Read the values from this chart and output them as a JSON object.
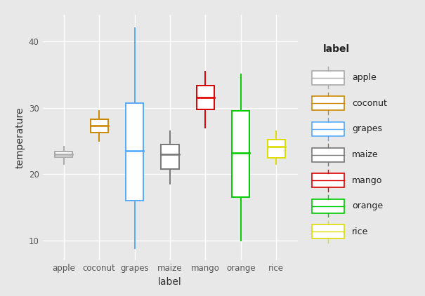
{
  "categories": [
    "apple",
    "coconut",
    "grapes",
    "maize",
    "mango",
    "orange",
    "rice"
  ],
  "colors": {
    "apple": "#aaaaaa",
    "coconut": "#cc8800",
    "grapes": "#55aaff",
    "maize": "#777777",
    "mango": "#dd0000",
    "orange": "#00cc00",
    "rice": "#dddd00"
  },
  "box_data": {
    "apple": {
      "min": 21.5,
      "q1": 22.6,
      "median": 23.0,
      "q3": 23.4,
      "max": 24.2
    },
    "coconut": {
      "min": 25.0,
      "q1": 26.3,
      "median": 27.3,
      "q3": 28.3,
      "max": 29.5
    },
    "grapes": {
      "min": 8.8,
      "q1": 16.0,
      "median": 23.5,
      "q3": 30.7,
      "max": 42.0
    },
    "maize": {
      "min": 18.5,
      "q1": 20.8,
      "median": 23.0,
      "q3": 24.5,
      "max": 26.5
    },
    "mango": {
      "min": 27.0,
      "q1": 29.8,
      "median": 31.5,
      "q3": 33.3,
      "max": 35.5
    },
    "orange": {
      "min": 10.0,
      "q1": 16.5,
      "median": 23.2,
      "q3": 29.5,
      "max": 35.0
    },
    "rice": {
      "min": 21.5,
      "q1": 22.5,
      "median": 24.2,
      "q3": 25.2,
      "max": 26.5
    }
  },
  "ylabel": "temperature",
  "xlabel": "label",
  "legend_title": "label",
  "ylim": [
    7,
    44
  ],
  "yticks": [
    10,
    20,
    30,
    40
  ],
  "background_color": "#e8e8e8",
  "panel_color": "#e8e8e8",
  "grid_color": "#ffffff",
  "box_width": 0.5,
  "whisker_cap": 0.0,
  "figsize": [
    6.05,
    4.22
  ],
  "dpi": 100
}
